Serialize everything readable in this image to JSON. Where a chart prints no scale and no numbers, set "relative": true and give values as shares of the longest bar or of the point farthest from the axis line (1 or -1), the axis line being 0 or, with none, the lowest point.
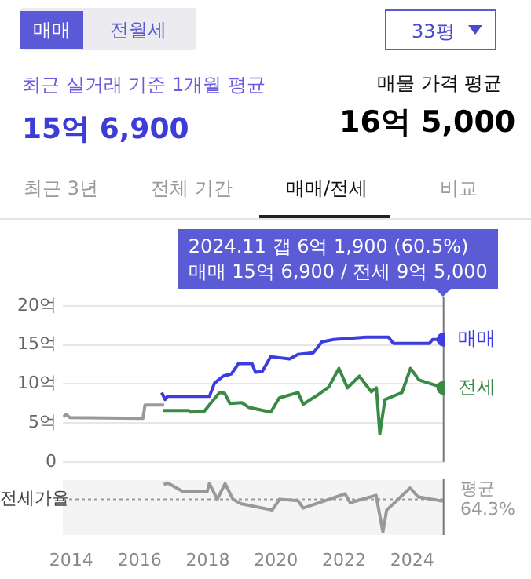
{
  "chart_data": [
    {
      "type": "other",
      "annotations": [
        "매매",
        "전월세",
        "33평",
        "최근 실거래 기준 1개월 평균",
        "15억 6,900",
        "매물 가격 평균",
        "16억 5,000",
        "최근 3년",
        "전체 기간",
        "매매/전세",
        "비교"
      ]
    },
    {
      "type": "line",
      "xlim": [
        2013.75,
        2024.95
      ],
      "ylim": [
        0,
        20
      ],
      "yticks": [
        {
          "value": 0,
          "label": "0"
        },
        {
          "value": 5,
          "label": "5억"
        },
        {
          "value": 10,
          "label": "10억"
        },
        {
          "value": 15,
          "label": "15억"
        },
        {
          "value": 20,
          "label": "20억"
        }
      ],
      "xticks": [
        2014,
        2016,
        2018,
        2020,
        2022,
        2024
      ],
      "tick_labels": "y",
      "grid": "y",
      "legend": false,
      "annotations": [
        "2024.11  갭 6억 1,900 (60.5%)",
        "매매 15억 6,900 / 전세 9억 5,000"
      ],
      "ref_lines": [
        {
          "axis": "x",
          "value": 2024.92,
          "color": "#777777"
        }
      ],
      "series": [
        {
          "color": "#999999",
          "x": [
            2013.77,
            2013.85,
            2013.95,
            2016.1,
            2016.16,
            2016.72
          ],
          "values": [
            5.8,
            6.1,
            5.7,
            5.6,
            7.3,
            7.3
          ]
        },
        {
          "name": "매매",
          "color": "#3c3ce0",
          "x": [
            2016.65,
            2016.75,
            2016.82,
            2018.05,
            2018.2,
            2018.45,
            2018.7,
            2018.9,
            2019.3,
            2019.4,
            2019.6,
            2019.85,
            2020.4,
            2020.65,
            2021.1,
            2021.35,
            2021.7,
            2022.65,
            2023.3,
            2023.45,
            2024.5,
            2024.6,
            2024.92
          ],
          "values": [
            8.9,
            8.0,
            8.4,
            8.4,
            10.1,
            11.0,
            11.3,
            12.6,
            12.6,
            11.5,
            11.6,
            13.5,
            13.2,
            13.8,
            14.0,
            15.4,
            15.7,
            16.0,
            16.0,
            15.2,
            15.2,
            15.7,
            15.7
          ]
        },
        {
          "name": "전세",
          "color": "#3a8a45",
          "x": [
            2016.7,
            2017.45,
            2017.5,
            2017.9,
            2018.1,
            2018.35,
            2018.5,
            2018.65,
            2019.0,
            2019.2,
            2019.85,
            2020.1,
            2020.65,
            2020.8,
            2021.2,
            2021.55,
            2021.85,
            2022.1,
            2022.45,
            2022.8,
            2022.95,
            2023.05,
            2023.2,
            2023.7,
            2023.95,
            2024.2,
            2024.92
          ],
          "values": [
            6.6,
            6.6,
            6.4,
            6.5,
            7.6,
            8.9,
            8.8,
            7.5,
            7.6,
            7.0,
            6.4,
            8.2,
            8.9,
            7.4,
            8.5,
            9.6,
            12.0,
            9.5,
            11.0,
            9.0,
            9.5,
            3.6,
            8.0,
            8.9,
            12.0,
            10.5,
            9.5
          ]
        }
      ]
    },
    {
      "type": "line",
      "relative": true,
      "ylabel": "전세가율",
      "xlim": [
        2013.75,
        2024.95
      ],
      "xticks": [
        2014,
        2016,
        2018,
        2020,
        2022,
        2024
      ],
      "tick_labels": "x",
      "grid": false,
      "legend": false,
      "ref_lines": [
        {
          "axis": "y",
          "value": 0.67,
          "label": "평균 64.3%",
          "color": "#999999",
          "line_style": "dotted"
        },
        {
          "axis": "x",
          "value": 2024.92,
          "color": "#777777"
        }
      ],
      "series": [
        {
          "color": "#999999",
          "x": [
            2016.71,
            2016.83,
            2017.29,
            2017.98,
            2018.05,
            2018.28,
            2018.51,
            2018.74,
            2018.97,
            2019.89,
            2020.11,
            2020.65,
            2020.8,
            2021.57,
            2022.03,
            2022.18,
            2022.94,
            2023.14,
            2023.25,
            2023.94,
            2024.17,
            2024.9
          ],
          "values": [
            0.97,
            1.0,
            0.82,
            0.82,
            0.99,
            0.67,
            0.99,
            0.67,
            0.58,
            0.45,
            0.67,
            0.64,
            0.49,
            0.67,
            0.78,
            0.6,
            0.75,
            0,
            0.45,
            0.9,
            0.72,
            0.63
          ]
        }
      ]
    }
  ]
}
